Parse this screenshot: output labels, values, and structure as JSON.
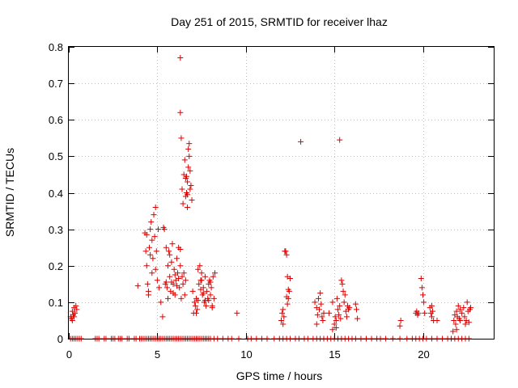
{
  "chart_data": {
    "type": "scatter",
    "title": "Day 251 of 2015, SRMTID for receiver lhaz",
    "xlabel": "GPS time / hours",
    "ylabel": "SRMTID / TECUs",
    "xlim": [
      0,
      24
    ],
    "ylim": [
      0,
      0.8
    ],
    "xticks": [
      0,
      5,
      10,
      15,
      20
    ],
    "yticks": [
      0,
      0.1,
      0.2,
      0.3,
      0.4,
      0.5,
      0.6,
      0.7,
      0.8
    ],
    "xtick_labels": [
      "0",
      "5",
      "10",
      "15",
      "20"
    ],
    "ytick_labels": [
      "0",
      "0.1",
      "0.2",
      "0.3",
      "0.4",
      "0.5",
      "0.6",
      "0.7",
      "0.8"
    ],
    "grid": true,
    "marker": "+",
    "color": "#dd0000",
    "series": [
      {
        "name": "SRMTID",
        "points": [
          [
            0.1,
            0.06
          ],
          [
            0.15,
            0.055
          ],
          [
            0.2,
            0.075
          ],
          [
            0.25,
            0.065
          ],
          [
            0.3,
            0.085
          ],
          [
            0.35,
            0.07
          ],
          [
            0.4,
            0.09
          ],
          [
            0.45,
            0.08
          ],
          [
            0.2,
            0.05
          ],
          [
            0.3,
            0.06
          ],
          [
            3.9,
            0.145
          ],
          [
            4.3,
            0.29
          ],
          [
            4.35,
            0.24
          ],
          [
            4.4,
            0.2
          ],
          [
            4.45,
            0.15
          ],
          [
            4.5,
            0.12
          ],
          [
            4.55,
            0.25
          ],
          [
            4.6,
            0.3
          ],
          [
            4.6,
            0.23
          ],
          [
            4.65,
            0.32
          ],
          [
            4.7,
            0.27
          ],
          [
            4.75,
            0.22
          ],
          [
            4.8,
            0.34
          ],
          [
            4.85,
            0.28
          ],
          [
            4.9,
            0.36
          ],
          [
            4.9,
            0.19
          ],
          [
            4.95,
            0.24
          ],
          [
            5.0,
            0.16
          ],
          [
            5.05,
            0.3
          ],
          [
            4.5,
            0.13
          ],
          [
            4.4,
            0.285
          ],
          [
            4.7,
            0.18
          ],
          [
            5.1,
            0.14
          ],
          [
            5.2,
            0.1
          ],
          [
            5.3,
            0.06
          ],
          [
            5.4,
            0.3
          ],
          [
            5.45,
            0.15
          ],
          [
            5.5,
            0.25
          ],
          [
            5.55,
            0.14
          ],
          [
            5.6,
            0.2
          ],
          [
            5.65,
            0.24
          ],
          [
            5.7,
            0.17
          ],
          [
            5.75,
            0.13
          ],
          [
            5.8,
            0.21
          ],
          [
            5.85,
            0.26
          ],
          [
            5.9,
            0.15
          ],
          [
            5.95,
            0.19
          ],
          [
            6.0,
            0.12
          ],
          [
            6.05,
            0.16
          ],
          [
            6.1,
            0.22
          ],
          [
            6.15,
            0.18
          ],
          [
            6.2,
            0.25
          ],
          [
            6.25,
            0.14
          ],
          [
            6.3,
            0.2
          ],
          [
            6.35,
            0.11
          ],
          [
            6.4,
            0.17
          ],
          [
            6.45,
            0.15
          ],
          [
            6.5,
            0.18
          ],
          [
            6.55,
            0.12
          ],
          [
            6.6,
            0.16
          ],
          [
            5.6,
            0.11
          ],
          [
            5.7,
            0.23
          ],
          [
            5.8,
            0.155
          ],
          [
            5.9,
            0.125
          ],
          [
            6.0,
            0.175
          ],
          [
            6.1,
            0.145
          ],
          [
            6.2,
            0.165
          ],
          [
            6.3,
            0.245
          ],
          [
            5.5,
            0.155
          ],
          [
            5.35,
            0.305
          ],
          [
            6.3,
            0.77
          ],
          [
            6.3,
            0.62
          ],
          [
            6.35,
            0.55
          ],
          [
            6.4,
            0.41
          ],
          [
            6.45,
            0.37
          ],
          [
            6.5,
            0.45
          ],
          [
            6.55,
            0.49
          ],
          [
            6.6,
            0.44
          ],
          [
            6.65,
            0.4
          ],
          [
            6.7,
            0.36
          ],
          [
            6.75,
            0.52
          ],
          [
            6.8,
            0.5
          ],
          [
            6.85,
            0.46
          ],
          [
            6.9,
            0.42
          ],
          [
            6.95,
            0.38
          ],
          [
            6.7,
            0.43
          ],
          [
            6.6,
            0.39
          ],
          [
            6.8,
            0.535
          ],
          [
            6.75,
            0.47
          ],
          [
            6.85,
            0.41
          ],
          [
            6.65,
            0.445
          ],
          [
            6.7,
            0.395
          ],
          [
            7.0,
            0.13
          ],
          [
            7.05,
            0.07
          ],
          [
            7.1,
            0.1
          ],
          [
            7.15,
            0.09
          ],
          [
            7.2,
            0.11
          ],
          [
            7.25,
            0.08
          ],
          [
            7.3,
            0.19
          ],
          [
            7.35,
            0.15
          ],
          [
            7.4,
            0.2
          ],
          [
            7.45,
            0.16
          ],
          [
            7.5,
            0.18
          ],
          [
            7.55,
            0.12
          ],
          [
            7.6,
            0.14
          ],
          [
            7.65,
            0.1
          ],
          [
            7.7,
            0.17
          ],
          [
            7.75,
            0.09
          ],
          [
            7.8,
            0.13
          ],
          [
            7.85,
            0.11
          ],
          [
            7.9,
            0.15
          ],
          [
            7.95,
            0.16
          ],
          [
            8.0,
            0.12
          ],
          [
            8.05,
            0.14
          ],
          [
            8.1,
            0.09
          ],
          [
            8.15,
            0.17
          ],
          [
            8.2,
            0.11
          ],
          [
            8.25,
            0.18
          ],
          [
            7.3,
            0.105
          ],
          [
            7.45,
            0.135
          ],
          [
            7.6,
            0.125
          ],
          [
            7.7,
            0.105
          ],
          [
            7.9,
            0.105
          ],
          [
            8.0,
            0.155
          ],
          [
            7.5,
            0.16
          ],
          [
            7.2,
            0.07
          ],
          [
            8.1,
            0.085
          ],
          [
            9.5,
            0.07
          ],
          [
            12.0,
            0.05
          ],
          [
            12.05,
            0.07
          ],
          [
            12.1,
            0.08
          ],
          [
            12.15,
            0.06
          ],
          [
            12.2,
            0.24
          ],
          [
            12.25,
            0.24
          ],
          [
            12.3,
            0.23
          ],
          [
            12.35,
            0.17
          ],
          [
            12.4,
            0.11
          ],
          [
            12.45,
            0.13
          ],
          [
            12.5,
            0.165
          ],
          [
            12.3,
            0.115
          ],
          [
            12.35,
            0.095
          ],
          [
            12.1,
            0.04
          ],
          [
            12.4,
            0.135
          ],
          [
            13.1,
            0.54
          ],
          [
            13.9,
            0.1
          ],
          [
            14.0,
            0.085
          ],
          [
            14.05,
            0.065
          ],
          [
            14.1,
            0.11
          ],
          [
            14.15,
            0.08
          ],
          [
            14.2,
            0.125
          ],
          [
            14.25,
            0.095
          ],
          [
            14.3,
            0.06
          ],
          [
            14.35,
            0.05
          ],
          [
            14.4,
            0.07
          ],
          [
            14.7,
            0.07
          ],
          [
            14.9,
            0.1
          ],
          [
            15.0,
            0.04
          ],
          [
            15.05,
            0.06
          ],
          [
            15.1,
            0.05
          ],
          [
            15.15,
            0.11
          ],
          [
            15.2,
            0.08
          ],
          [
            15.25,
            0.065
          ],
          [
            15.3,
            0.09
          ],
          [
            15.35,
            0.055
          ],
          [
            14.9,
            0.025
          ],
          [
            15.1,
            0.03
          ],
          [
            14.0,
            0.04
          ],
          [
            15.3,
            0.545
          ],
          [
            15.4,
            0.16
          ],
          [
            15.45,
            0.15
          ],
          [
            15.5,
            0.13
          ],
          [
            15.55,
            0.1
          ],
          [
            15.6,
            0.12
          ],
          [
            15.65,
            0.075
          ],
          [
            15.7,
            0.06
          ],
          [
            15.75,
            0.09
          ],
          [
            15.8,
            0.08
          ],
          [
            15.85,
            0.085
          ],
          [
            16.2,
            0.095
          ],
          [
            16.25,
            0.08
          ],
          [
            16.3,
            0.055
          ],
          [
            18.7,
            0.035
          ],
          [
            18.75,
            0.05
          ],
          [
            19.6,
            0.07
          ],
          [
            19.65,
            0.075
          ],
          [
            19.7,
            0.065
          ],
          [
            19.75,
            0.07
          ],
          [
            19.9,
            0.165
          ],
          [
            19.95,
            0.14
          ],
          [
            20.0,
            0.12
          ],
          [
            20.05,
            0.1
          ],
          [
            20.1,
            0.07
          ],
          [
            20.4,
            0.085
          ],
          [
            20.45,
            0.07
          ],
          [
            20.5,
            0.06
          ],
          [
            20.55,
            0.075
          ],
          [
            20.6,
            0.05
          ],
          [
            20.8,
            0.05
          ],
          [
            20.5,
            0.09
          ],
          [
            21.7,
            0.02
          ],
          [
            21.75,
            0.05
          ],
          [
            21.8,
            0.065
          ],
          [
            21.85,
            0.04
          ],
          [
            21.9,
            0.075
          ],
          [
            21.95,
            0.06
          ],
          [
            22.0,
            0.09
          ],
          [
            22.05,
            0.055
          ],
          [
            22.1,
            0.05
          ],
          [
            22.2,
            0.07
          ],
          [
            22.3,
            0.085
          ],
          [
            22.35,
            0.06
          ],
          [
            22.4,
            0.04
          ],
          [
            22.45,
            0.05
          ],
          [
            22.5,
            0.1
          ],
          [
            22.55,
            0.075
          ],
          [
            22.6,
            0.045
          ],
          [
            22.65,
            0.08
          ],
          [
            22.7,
            0.085
          ],
          [
            22.1,
            0.08
          ],
          [
            21.9,
            0.025
          ]
        ]
      },
      {
        "name": "SRMTID zero values",
        "x_values_at_y0": [
          0.1,
          0.2,
          0.3,
          0.4,
          0.5,
          0.6,
          0.7,
          1.5,
          1.6,
          1.7,
          2.0,
          2.1,
          2.4,
          2.5,
          2.6,
          2.8,
          2.9,
          3.0,
          3.3,
          3.4,
          3.7,
          3.8,
          4.0,
          4.1,
          4.2,
          4.3,
          4.4,
          4.5,
          4.6,
          4.7,
          4.8,
          4.9,
          5.0,
          5.1,
          5.2,
          5.3,
          5.4,
          5.5,
          5.6,
          5.7,
          5.8,
          5.9,
          6.0,
          6.1,
          6.2,
          6.3,
          6.4,
          6.5,
          6.6,
          6.7,
          6.8,
          6.9,
          7.0,
          7.1,
          7.2,
          7.3,
          7.4,
          7.5,
          7.6,
          7.7,
          7.8,
          7.9,
          8.0,
          8.2,
          8.4,
          8.7,
          9.0,
          9.2,
          9.6,
          10.1,
          10.3,
          10.6,
          10.9,
          11.2,
          11.6,
          11.9,
          12.1,
          12.3,
          12.5,
          12.8,
          13.0,
          13.3,
          13.5,
          13.8,
          14.0,
          14.2,
          14.4,
          14.6,
          14.8,
          15.0,
          15.2,
          15.4,
          15.6,
          15.8,
          16.0,
          16.2,
          16.5,
          16.8,
          17.1,
          17.4,
          17.6,
          17.9,
          18.3,
          18.7,
          19.1,
          19.4,
          19.6,
          19.8,
          20.0,
          20.2,
          20.5,
          20.8,
          21.1,
          21.4,
          21.6,
          21.8,
          22.0,
          22.2,
          22.4,
          22.6
        ]
      }
    ]
  }
}
